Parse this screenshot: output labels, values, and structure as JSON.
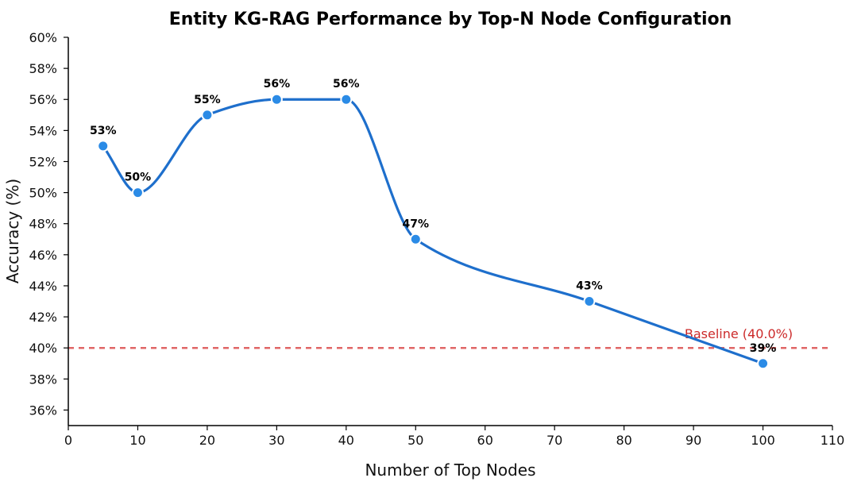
{
  "chart_data": {
    "type": "line",
    "title": "Entity KG-RAG Performance by Top-N Node Configuration",
    "xlabel": "Number of Top Nodes",
    "ylabel": "Accuracy (%)",
    "xlim": [
      0,
      110
    ],
    "ylim": [
      35,
      60
    ],
    "x_ticks": [
      0,
      10,
      20,
      30,
      40,
      50,
      60,
      70,
      80,
      90,
      100,
      110
    ],
    "y_ticks": [
      36,
      38,
      40,
      42,
      44,
      46,
      48,
      50,
      52,
      54,
      56,
      58,
      60
    ],
    "y_tick_suffix": "%",
    "grid": false,
    "series": [
      {
        "x": [
          5,
          10,
          20,
          30,
          40,
          50,
          75,
          100
        ],
        "values": [
          53,
          50,
          55,
          56,
          56,
          47,
          43,
          39
        ],
        "data_labels": [
          "53%",
          "50%",
          "55%",
          "56%",
          "56%",
          "47%",
          "43%",
          "39%"
        ],
        "line_color": "#1e6fcc",
        "marker_color": "#2b8be6"
      }
    ],
    "baseline": {
      "value": 40,
      "label": "Baseline (40.0%)",
      "color": "#e06666",
      "label_color": "#cc2a2a"
    }
  }
}
